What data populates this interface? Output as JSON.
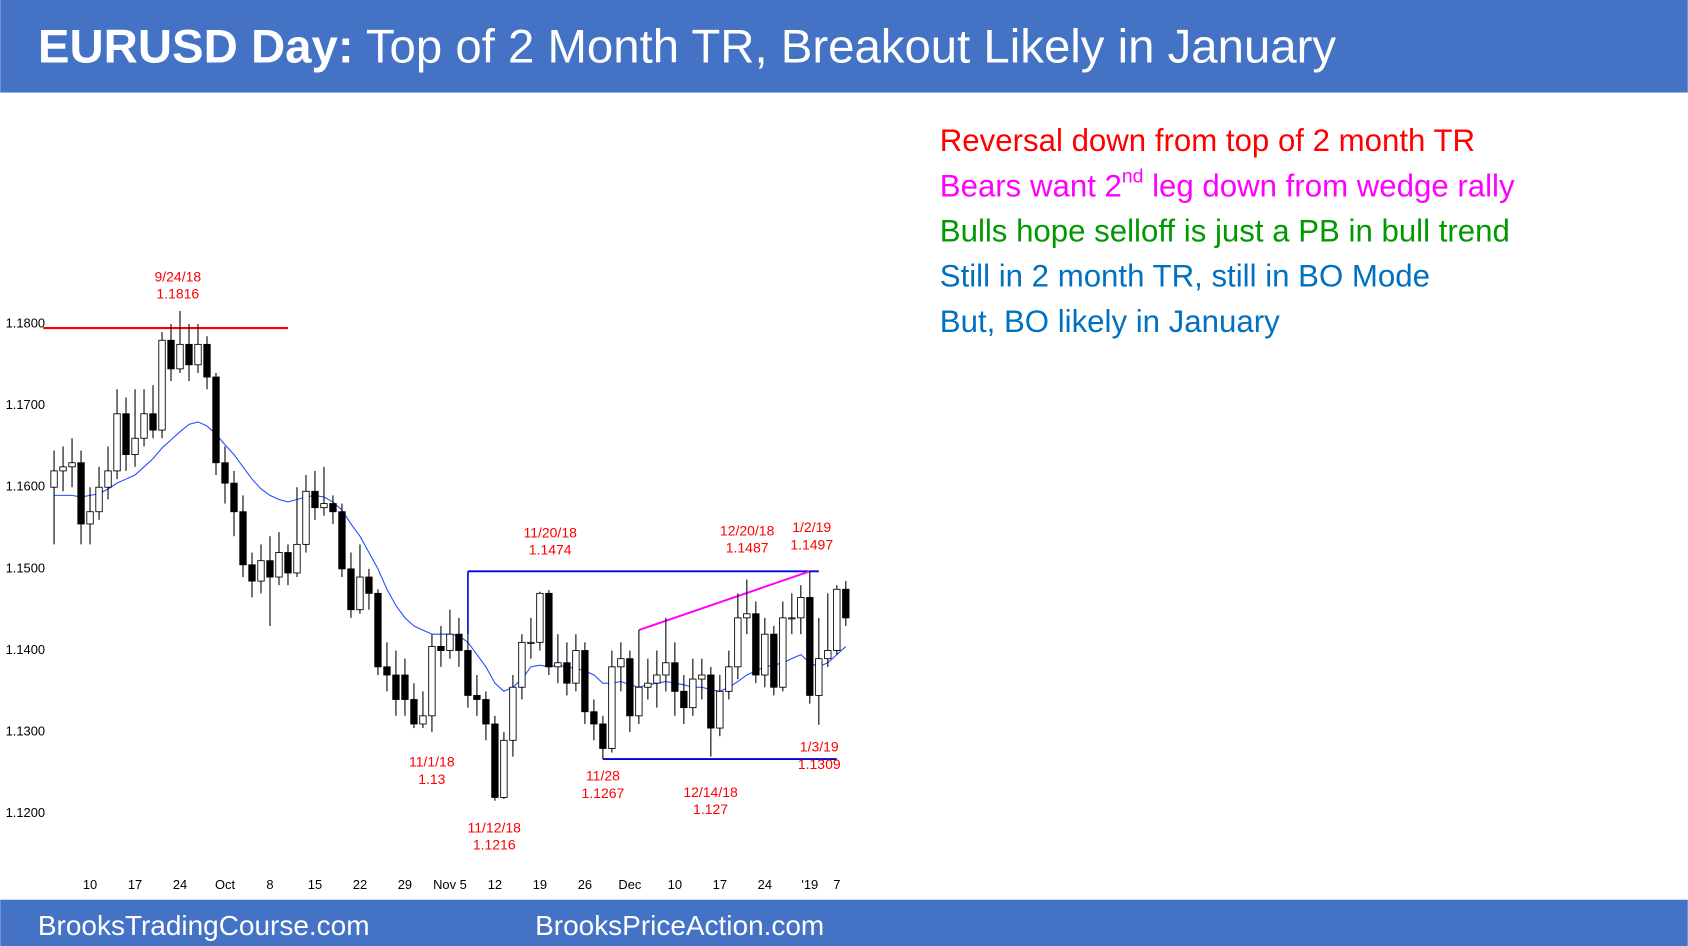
{
  "header": {
    "title_bold": "EURUSD Day:",
    "title_rest": " Top of 2 Month TR, Breakout Likely in January"
  },
  "notes": [
    {
      "parts": [
        "Reversal down from top of 2 month TR"
      ],
      "color": "#ff0000"
    },
    {
      "parts": [
        "Bears want 2",
        "nd",
        " leg down from wedge rally"
      ],
      "color": "#ff00ff"
    },
    {
      "parts": [
        "Bulls hope selloff is just a PB in bull trend"
      ],
      "color": "#009900"
    },
    {
      "parts": [
        "Still in 2 month TR, still in BO Mode"
      ],
      "color": "#0070c0"
    },
    {
      "parts": [
        "But, BO likely in January"
      ],
      "color": "#0070c0"
    }
  ],
  "footer": {
    "left": "BrooksTradingCourse.com",
    "right": "BrooksPriceAction.com"
  },
  "chart_data": {
    "type": "candlestick",
    "categories": [
      null,
      null,
      null,
      null,
      "10",
      null,
      null,
      null,
      null,
      "17",
      null,
      null,
      null,
      null,
      "24",
      null,
      null,
      null,
      null,
      "Oct",
      null,
      null,
      null,
      null,
      "8",
      null,
      null,
      null,
      null,
      "15",
      null,
      null,
      null,
      null,
      "22",
      null,
      null,
      null,
      null,
      "29",
      null,
      null,
      null,
      null,
      "Nov 5",
      null,
      null,
      null,
      null,
      "12",
      null,
      null,
      null,
      null,
      "19",
      null,
      null,
      null,
      null,
      "26",
      null,
      null,
      null,
      null,
      "Dec",
      null,
      null,
      null,
      null,
      "10",
      null,
      null,
      null,
      null,
      "17",
      null,
      null,
      null,
      null,
      "24",
      null,
      null,
      null,
      null,
      "'19",
      null,
      null,
      "7",
      null
    ],
    "open": [
      1.16,
      1.162,
      1.1625,
      1.163,
      1.1555,
      1.157,
      1.16,
      1.162,
      1.169,
      1.164,
      1.166,
      1.169,
      1.167,
      1.178,
      1.1745,
      1.1775,
      1.175,
      1.1775,
      1.1735,
      1.163,
      1.1605,
      1.157,
      1.1505,
      1.1485,
      1.151,
      1.149,
      1.152,
      1.1495,
      1.153,
      1.1595,
      1.1575,
      1.158,
      1.157,
      1.15,
      1.145,
      1.149,
      1.147,
      1.138,
      1.137,
      1.137,
      1.134,
      1.131,
      1.132,
      1.1405,
      1.14,
      1.142,
      1.14,
      1.1345,
      1.134,
      1.131,
      1.122,
      1.129,
      1.1355,
      1.141,
      1.141,
      1.147,
      1.138,
      1.1385,
      1.136,
      1.14,
      1.1325,
      1.131,
      1.128,
      1.138,
      1.139,
      1.132,
      1.1355,
      1.136,
      1.137,
      1.1385,
      1.135,
      1.133,
      1.1365,
      1.137,
      1.1305,
      1.135,
      1.138,
      1.144,
      1.1445,
      1.137,
      1.142,
      1.1355,
      1.144,
      1.144,
      1.1465,
      1.1345,
      1.139,
      1.14,
      1.1475
    ],
    "high": [
      1.1645,
      1.165,
      1.166,
      1.1645,
      1.16,
      1.1625,
      1.165,
      1.172,
      1.171,
      1.172,
      1.172,
      1.1725,
      1.179,
      1.18,
      1.1816,
      1.18,
      1.18,
      1.1785,
      1.174,
      1.165,
      1.162,
      1.159,
      1.152,
      1.153,
      1.154,
      1.1545,
      1.153,
      1.16,
      1.1615,
      1.162,
      1.1625,
      1.159,
      1.158,
      1.152,
      1.153,
      1.15,
      1.1475,
      1.141,
      1.14,
      1.139,
      1.136,
      1.135,
      1.142,
      1.143,
      1.145,
      1.144,
      1.142,
      1.137,
      1.135,
      1.132,
      1.13,
      1.137,
      1.142,
      1.144,
      1.1472,
      1.1474,
      1.142,
      1.141,
      1.142,
      1.141,
      1.134,
      1.132,
      1.14,
      1.141,
      1.14,
      1.1425,
      1.139,
      1.14,
      1.144,
      1.141,
      1.137,
      1.139,
      1.139,
      1.138,
      1.137,
      1.14,
      1.147,
      1.1487,
      1.146,
      1.144,
      1.143,
      1.146,
      1.147,
      1.148,
      1.1497,
      1.144,
      1.147,
      1.148,
      1.1485
    ],
    "low": [
      1.153,
      1.1595,
      1.16,
      1.153,
      1.153,
      1.156,
      1.1585,
      1.161,
      1.162,
      1.1625,
      1.165,
      1.166,
      1.166,
      1.173,
      1.174,
      1.173,
      1.174,
      1.172,
      1.1615,
      1.158,
      1.154,
      1.149,
      1.1465,
      1.147,
      1.143,
      1.148,
      1.148,
      1.149,
      1.152,
      1.156,
      1.1565,
      1.1555,
      1.149,
      1.144,
      1.1445,
      1.145,
      1.137,
      1.135,
      1.132,
      1.132,
      1.1305,
      1.1305,
      1.13,
      1.138,
      1.139,
      1.138,
      1.133,
      1.132,
      1.129,
      1.1216,
      1.1218,
      1.127,
      1.134,
      1.139,
      1.14,
      1.137,
      1.136,
      1.1345,
      1.135,
      1.131,
      1.129,
      1.1267,
      1.1275,
      1.135,
      1.13,
      1.131,
      1.134,
      1.133,
      1.135,
      1.132,
      1.131,
      1.132,
      1.134,
      1.127,
      1.1295,
      1.134,
      1.1365,
      1.142,
      1.136,
      1.1355,
      1.1345,
      1.135,
      1.142,
      1.142,
      1.1335,
      1.1309,
      1.138,
      1.1395,
      1.143
    ],
    "close": [
      1.162,
      1.1625,
      1.163,
      1.1555,
      1.157,
      1.16,
      1.162,
      1.169,
      1.164,
      1.166,
      1.169,
      1.167,
      1.178,
      1.1745,
      1.1775,
      1.175,
      1.1775,
      1.1735,
      1.163,
      1.1605,
      1.157,
      1.1505,
      1.1485,
      1.151,
      1.149,
      1.152,
      1.1495,
      1.153,
      1.1595,
      1.1575,
      1.158,
      1.157,
      1.15,
      1.145,
      1.149,
      1.147,
      1.138,
      1.137,
      1.134,
      1.134,
      1.131,
      1.132,
      1.1405,
      1.14,
      1.142,
      1.14,
      1.1345,
      1.134,
      1.131,
      1.122,
      1.129,
      1.1355,
      1.141,
      1.141,
      1.147,
      1.138,
      1.1385,
      1.136,
      1.14,
      1.1325,
      1.131,
      1.128,
      1.138,
      1.139,
      1.132,
      1.1355,
      1.136,
      1.137,
      1.1385,
      1.135,
      1.133,
      1.1365,
      1.137,
      1.1305,
      1.135,
      1.138,
      1.144,
      1.1445,
      1.137,
      1.142,
      1.1355,
      1.144,
      1.144,
      1.1465,
      1.1345,
      1.139,
      1.14,
      1.1475,
      1.144
    ],
    "moving_average": {
      "color": "#1f4fff",
      "values": [
        1.159,
        1.159,
        1.159,
        1.1588,
        1.159,
        1.1592,
        1.1598,
        1.1605,
        1.161,
        1.1615,
        1.1625,
        1.1635,
        1.1648,
        1.1658,
        1.1668,
        1.1677,
        1.168,
        1.1675,
        1.1665,
        1.1652,
        1.164,
        1.1625,
        1.161,
        1.1598,
        1.159,
        1.1585,
        1.1582,
        1.1585,
        1.1588,
        1.159,
        1.1588,
        1.1582,
        1.1572,
        1.1555,
        1.154,
        1.152,
        1.15,
        1.1475,
        1.1455,
        1.144,
        1.143,
        1.1425,
        1.142,
        1.142,
        1.142,
        1.1418,
        1.141,
        1.1395,
        1.138,
        1.136,
        1.135,
        1.1355,
        1.1365,
        1.138,
        1.1382,
        1.138,
        1.1382,
        1.138,
        1.1378,
        1.1375,
        1.137,
        1.136,
        1.136,
        1.1362,
        1.1358,
        1.1355,
        1.1358,
        1.136,
        1.1362,
        1.136,
        1.1358,
        1.1355,
        1.1355,
        1.1352,
        1.135,
        1.1355,
        1.1362,
        1.137,
        1.1375,
        1.138,
        1.1382,
        1.1385,
        1.139,
        1.1395,
        1.1385,
        1.138,
        1.1385,
        1.1395,
        1.1405
      ]
    },
    "reference_lines": [
      {
        "value": 1.1795,
        "color": "#ff0000"
      },
      {
        "value": 1.1497,
        "color": "#0000dd"
      },
      {
        "value": 1.1267,
        "color": "#0000dd"
      }
    ],
    "trendline": {
      "values": [
        1.1425,
        1.1497
      ],
      "color": "#ff00ff"
    },
    "annotations": [
      {
        "date": "9/24/18",
        "price": 1.1816
      },
      {
        "date": "11/20/18",
        "price": 1.1474
      },
      {
        "date": "12/20/18",
        "price": 1.1487
      },
      {
        "date": "1/2/19",
        "price": 1.1497
      },
      {
        "date": "11/1/18",
        "price": 1.13
      },
      {
        "date": "11/28",
        "price": 1.1267
      },
      {
        "date": "12/14/18",
        "price": 1.127
      },
      {
        "date": "11/12/18",
        "price": 1.1216
      },
      {
        "date": "1/3/19",
        "price": 1.1309
      }
    ],
    "annotation_color": "#ff0000",
    "ylim": [
      1.1129,
      1.2065
    ],
    "yticks": [
      {
        "value": 1.12,
        "label": "1.1200"
      },
      {
        "value": 1.13,
        "label": "1.1300"
      },
      {
        "value": 1.14,
        "label": "1.1400"
      },
      {
        "value": 1.15,
        "label": "1.1500"
      },
      {
        "value": 1.16,
        "label": "1.1600"
      },
      {
        "value": 1.17,
        "label": "1.1700"
      },
      {
        "value": 1.18,
        "label": "1.1800"
      }
    ]
  }
}
